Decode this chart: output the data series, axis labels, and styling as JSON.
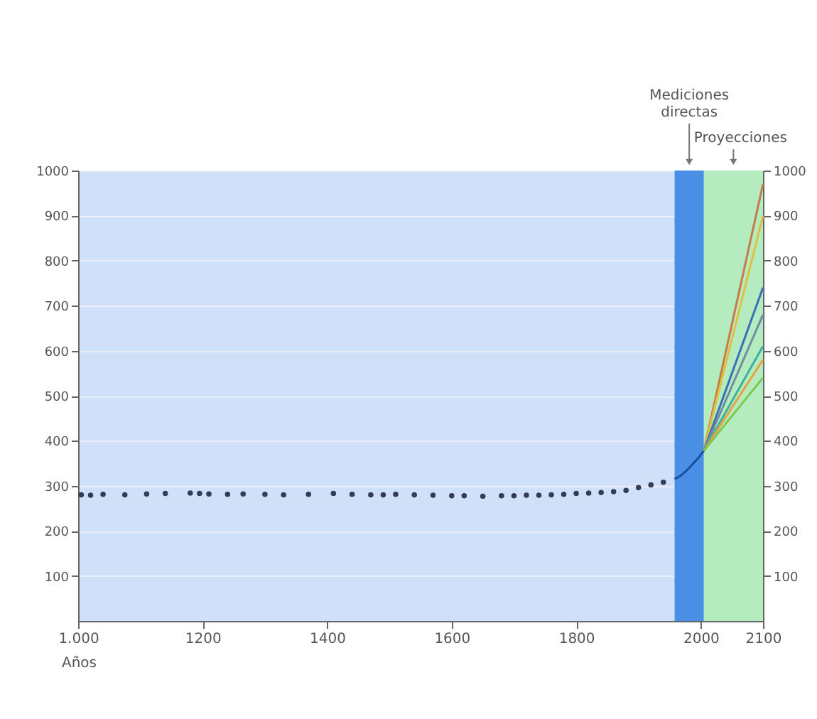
{
  "chart_data": {
    "type": "scatter",
    "xlabel": "Años",
    "xlim": [
      1000,
      2100
    ],
    "xticks": [
      {
        "value": 1000,
        "label": "1.000"
      },
      1200,
      1400,
      1600,
      1800,
      2000,
      2100
    ],
    "ylim": [
      0,
      1000
    ],
    "yticks": [
      100,
      200,
      300,
      400,
      500,
      600,
      700,
      800,
      900,
      1000
    ],
    "y2lim": [
      0,
      1000
    ],
    "y2ticks": [
      100,
      200,
      300,
      400,
      500,
      600,
      700,
      800,
      900,
      1000
    ],
    "grid": "y",
    "bands": [
      {
        "axis": "x",
        "from": 1958,
        "to": 2005,
        "label": "Mediciones directas",
        "color": "#4a8fe6"
      },
      {
        "axis": "x",
        "from": 2005,
        "to": 2100,
        "label": "Proyecciones",
        "color": "#b4ecc0"
      }
    ],
    "series": [
      {
        "color": "#333c55",
        "marker": "circle",
        "x": [
          1005,
          1020,
          1040,
          1075,
          1110,
          1140,
          1180,
          1195,
          1210,
          1240,
          1265,
          1300,
          1330,
          1370,
          1410,
          1440,
          1470,
          1490,
          1510,
          1540,
          1570,
          1600,
          1620,
          1650,
          1680,
          1700,
          1720,
          1740,
          1760,
          1780,
          1800,
          1820,
          1840,
          1860,
          1880,
          1900,
          1920,
          1940
        ],
        "values": [
          280,
          279,
          281,
          280,
          282,
          283,
          284,
          283,
          282,
          281,
          282,
          281,
          280,
          281,
          283,
          281,
          280,
          280,
          281,
          280,
          279,
          278,
          278,
          277,
          278,
          278,
          279,
          279,
          280,
          281,
          283,
          284,
          285,
          287,
          290,
          296,
          302,
          308
        ]
      },
      {
        "type": "line",
        "color": "#1a4fa0",
        "x": [
          1958,
          1965,
          1970,
          1975,
          1980,
          1985,
          1990,
          1995,
          2000,
          2005
        ],
        "values": [
          315,
          320,
          325,
          331,
          338,
          345,
          353,
          360,
          369,
          378
        ]
      },
      {
        "type": "line",
        "color": "#c8794a",
        "x": [
          2005,
          2100
        ],
        "values": [
          378,
          970
        ]
      },
      {
        "type": "line",
        "color": "#e0c040",
        "x": [
          2005,
          2100
        ],
        "values": [
          378,
          900
        ]
      },
      {
        "type": "line",
        "color": "#3a6fb8",
        "x": [
          2005,
          2100
        ],
        "values": [
          378,
          740
        ]
      },
      {
        "type": "line",
        "color": "#6f8fa0",
        "x": [
          2005,
          2100
        ],
        "values": [
          378,
          680
        ]
      },
      {
        "type": "line",
        "color": "#3fb0a0",
        "x": [
          2005,
          2100
        ],
        "values": [
          378,
          610
        ]
      },
      {
        "type": "line",
        "color": "#e8a040",
        "x": [
          2005,
          2100
        ],
        "values": [
          378,
          580
        ]
      },
      {
        "type": "line",
        "color": "#7cc850",
        "x": [
          2005,
          2100
        ],
        "values": [
          378,
          540
        ]
      }
    ]
  }
}
